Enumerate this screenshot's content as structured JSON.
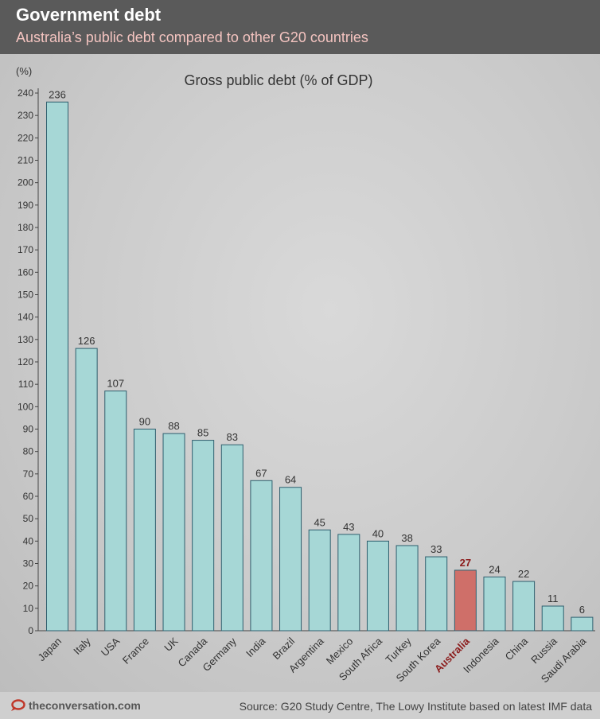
{
  "header": {
    "title": "Government debt",
    "subtitle": "Australia’s public debt compared to other G20 countries"
  },
  "footer": {
    "brand": "theconversation.com",
    "source": "Source: G20 Study Centre, The Lowy Institute based on latest IMF data"
  },
  "colors": {
    "bar": "#a6d7d6",
    "bar_highlight": "#cf6f69",
    "bar_stroke": "#2f5f6e",
    "highlight_text": "#8b1c1c",
    "header_bg": "#5a5a5a",
    "subtitle": "#f4c4c0"
  },
  "icons": {
    "brand_logo": "speech-bubble-icon"
  },
  "chart_data": {
    "type": "bar",
    "title": "Gross public debt (% of GDP)",
    "ylabel": "(%)",
    "xlabel": "",
    "ylim": [
      0,
      240
    ],
    "ytick_step": 10,
    "grid": false,
    "highlight": "Australia",
    "categories": [
      "Japan",
      "Italy",
      "USA",
      "France",
      "UK",
      "Canada",
      "Germany",
      "India",
      "Brazil",
      "Argentina",
      "Mexico",
      "South Africa",
      "Turkey",
      "South Korea",
      "Australia",
      "Indonesia",
      "China",
      "Russia",
      "Saudi Arabia"
    ],
    "values": [
      236,
      126,
      107,
      90,
      88,
      85,
      83,
      67,
      64,
      45,
      43,
      40,
      38,
      33,
      27,
      24,
      22,
      11,
      6
    ]
  }
}
